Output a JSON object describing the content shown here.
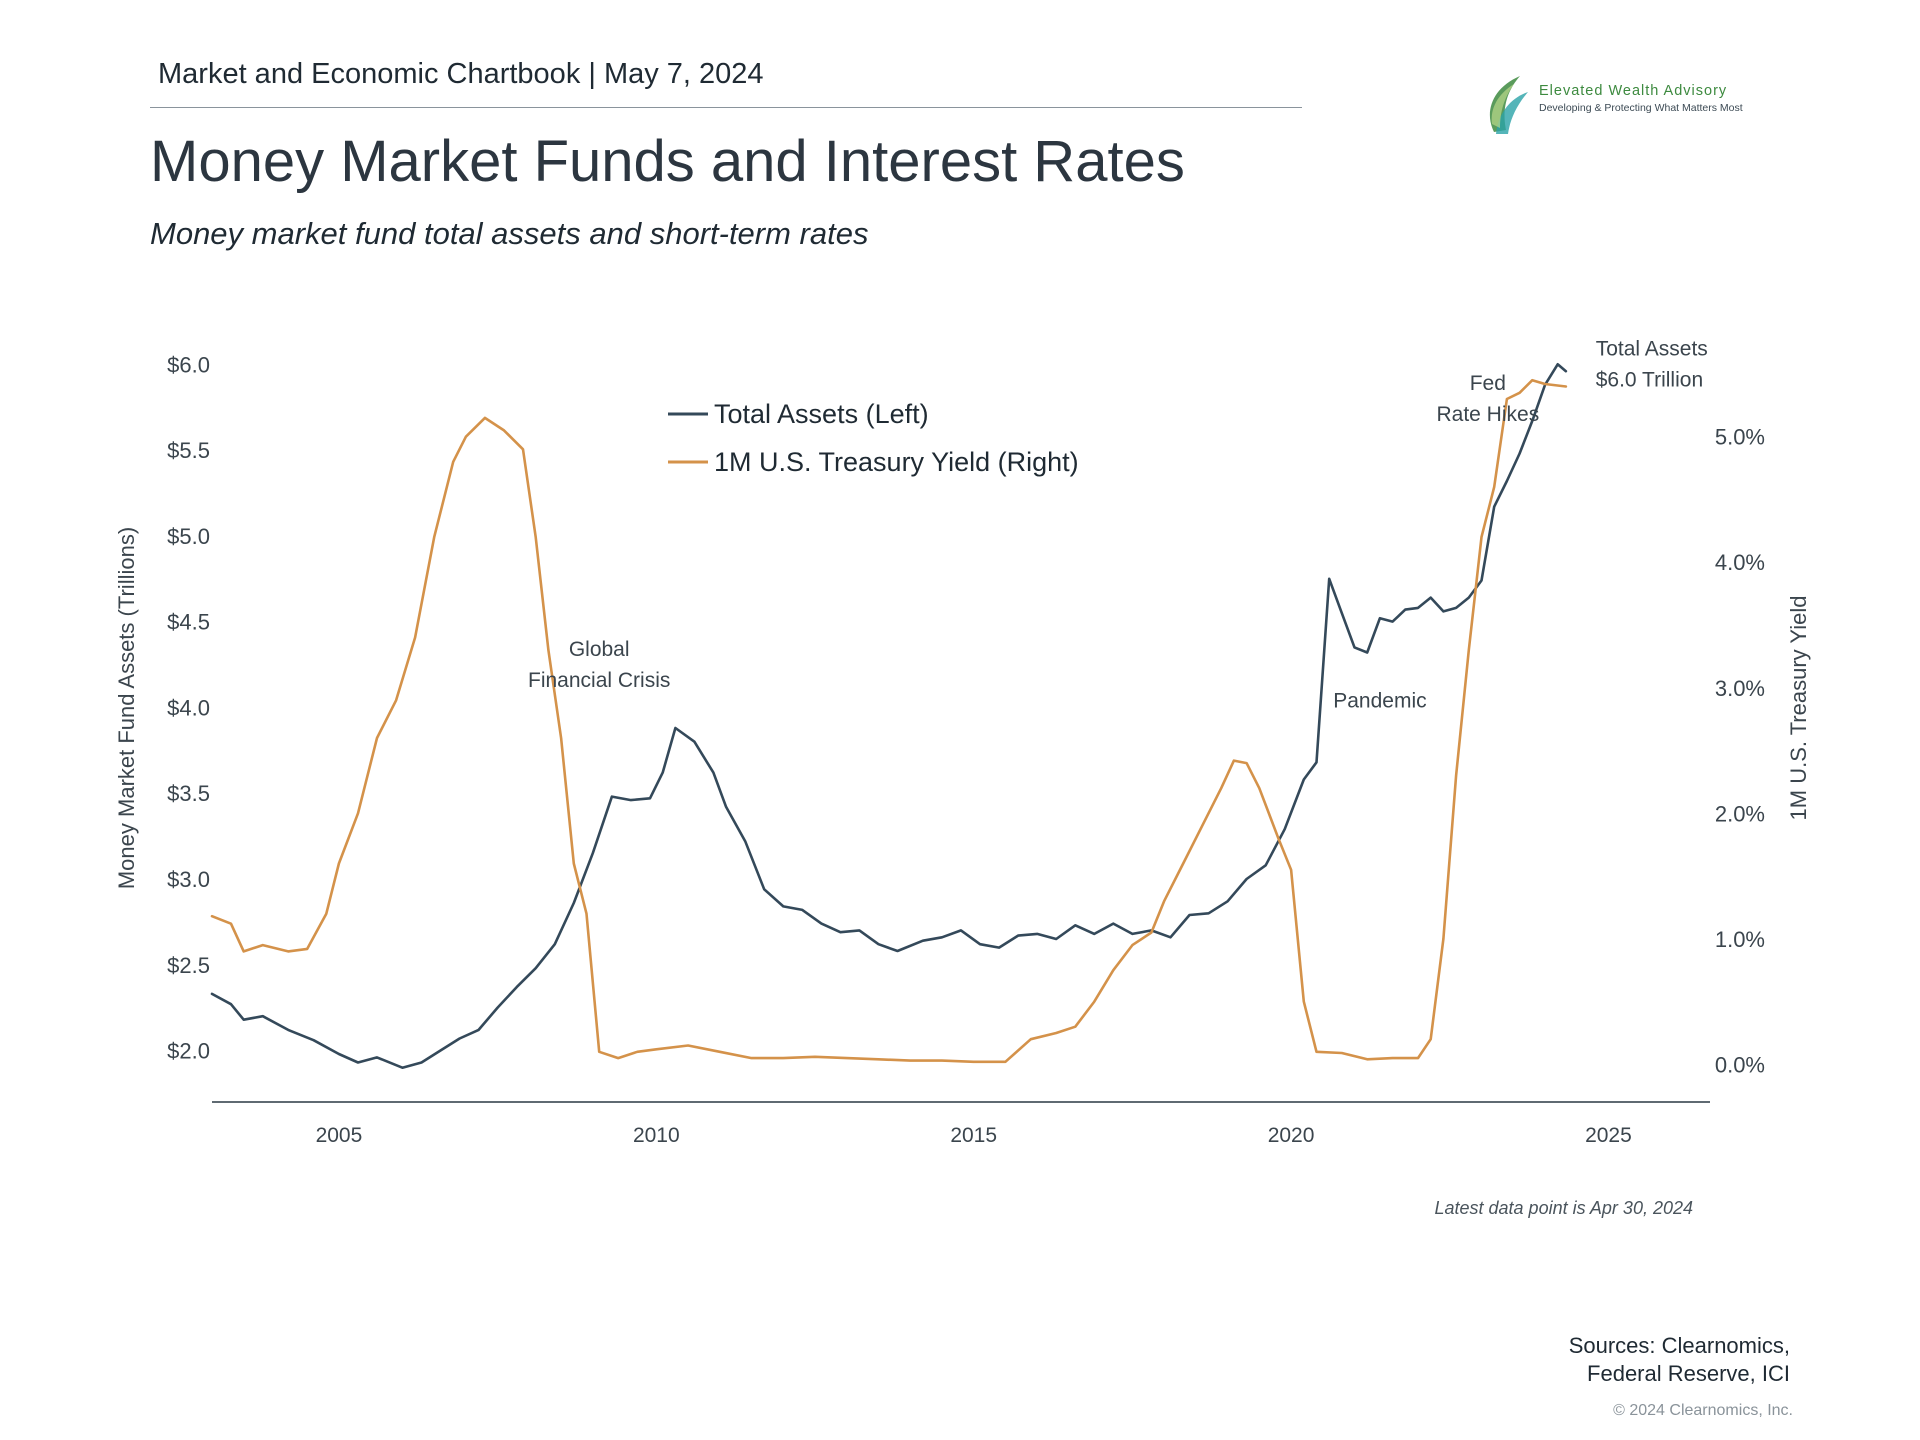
{
  "header": {
    "chartbook": "Market and Economic Chartbook | May 7, 2024"
  },
  "logo": {
    "name": "Elevated Wealth Advisory",
    "tagline": "Developing & Protecting What Matters Most",
    "color_green": "#3d8a3f",
    "color_teal": "#2aa3a8"
  },
  "title": "Money Market Funds and Interest Rates",
  "subtitle": "Money market fund total assets and short-term rates",
  "footnote": "Latest data point is Apr 30, 2024",
  "sources": {
    "line1": "Sources: Clearnomics,",
    "line2": "Federal Reserve, ICI"
  },
  "copyright": "© 2024 Clearnomics, Inc.",
  "chart_data": {
    "type": "line",
    "title": "",
    "ylabel_left": "Money Market Fund Assets (Trillions)",
    "ylabel_right": "1M U.S. Treasury Yield",
    "xlabel": "",
    "x_ticks": [
      "2005",
      "2010",
      "2015",
      "2020",
      "2025"
    ],
    "x_tick_values": [
      2005,
      2010,
      2015,
      2020,
      2025
    ],
    "xlim": [
      2003.0,
      2026.6
    ],
    "y_left_ticks": [
      "$2.0",
      "$2.5",
      "$3.0",
      "$3.5",
      "$4.0",
      "$4.5",
      "$5.0",
      "$5.5",
      "$6.0"
    ],
    "y_left_tick_values": [
      2.0,
      2.5,
      3.0,
      3.5,
      4.0,
      4.5,
      5.0,
      5.5,
      6.0
    ],
    "ylim_left": [
      1.7,
      6.2
    ],
    "y_right_ticks": [
      "0.0%",
      "1.0%",
      "2.0%",
      "3.0%",
      "4.0%",
      "5.0%"
    ],
    "y_right_tick_values": [
      0,
      1,
      2,
      3,
      4,
      5
    ],
    "ylim_right": [
      -0.3,
      5.85
    ],
    "grid": false,
    "legend_position": "top-center",
    "colors": {
      "total_assets": "#34495a",
      "treasury_yield": "#d4924a",
      "axis": "#5f6a72"
    },
    "series": [
      {
        "name": "Total Assets (Left)",
        "axis": "left",
        "points": [
          [
            2003.0,
            2.33
          ],
          [
            2003.3,
            2.27
          ],
          [
            2003.5,
            2.18
          ],
          [
            2003.8,
            2.2
          ],
          [
            2004.2,
            2.12
          ],
          [
            2004.6,
            2.06
          ],
          [
            2005.0,
            1.98
          ],
          [
            2005.3,
            1.93
          ],
          [
            2005.6,
            1.96
          ],
          [
            2006.0,
            1.9
          ],
          [
            2006.3,
            1.93
          ],
          [
            2006.6,
            2.0
          ],
          [
            2006.9,
            2.07
          ],
          [
            2007.2,
            2.12
          ],
          [
            2007.5,
            2.25
          ],
          [
            2007.8,
            2.37
          ],
          [
            2008.1,
            2.48
          ],
          [
            2008.4,
            2.62
          ],
          [
            2008.7,
            2.86
          ],
          [
            2009.0,
            3.15
          ],
          [
            2009.3,
            3.48
          ],
          [
            2009.6,
            3.46
          ],
          [
            2009.9,
            3.47
          ],
          [
            2010.1,
            3.62
          ],
          [
            2010.3,
            3.88
          ],
          [
            2010.6,
            3.8
          ],
          [
            2010.9,
            3.62
          ],
          [
            2011.1,
            3.42
          ],
          [
            2011.4,
            3.22
          ],
          [
            2011.7,
            2.94
          ],
          [
            2012.0,
            2.84
          ],
          [
            2012.3,
            2.82
          ],
          [
            2012.6,
            2.74
          ],
          [
            2012.9,
            2.69
          ],
          [
            2013.2,
            2.7
          ],
          [
            2013.5,
            2.62
          ],
          [
            2013.8,
            2.58
          ],
          [
            2014.2,
            2.64
          ],
          [
            2014.5,
            2.66
          ],
          [
            2014.8,
            2.7
          ],
          [
            2015.1,
            2.62
          ],
          [
            2015.4,
            2.6
          ],
          [
            2015.7,
            2.67
          ],
          [
            2016.0,
            2.68
          ],
          [
            2016.3,
            2.65
          ],
          [
            2016.6,
            2.73
          ],
          [
            2016.9,
            2.68
          ],
          [
            2017.2,
            2.74
          ],
          [
            2017.5,
            2.68
          ],
          [
            2017.8,
            2.7
          ],
          [
            2018.1,
            2.66
          ],
          [
            2018.4,
            2.79
          ],
          [
            2018.7,
            2.8
          ],
          [
            2019.0,
            2.87
          ],
          [
            2019.3,
            3.0
          ],
          [
            2019.6,
            3.08
          ],
          [
            2019.9,
            3.29
          ],
          [
            2020.2,
            3.58
          ],
          [
            2020.4,
            3.68
          ],
          [
            2020.6,
            4.75
          ],
          [
            2020.8,
            4.55
          ],
          [
            2021.0,
            4.35
          ],
          [
            2021.2,
            4.32
          ],
          [
            2021.4,
            4.52
          ],
          [
            2021.6,
            4.5
          ],
          [
            2021.8,
            4.57
          ],
          [
            2022.0,
            4.58
          ],
          [
            2022.2,
            4.64
          ],
          [
            2022.4,
            4.56
          ],
          [
            2022.6,
            4.58
          ],
          [
            2022.8,
            4.64
          ],
          [
            2023.0,
            4.74
          ],
          [
            2023.2,
            5.17
          ],
          [
            2023.4,
            5.32
          ],
          [
            2023.6,
            5.48
          ],
          [
            2023.8,
            5.67
          ],
          [
            2024.0,
            5.88
          ],
          [
            2024.2,
            6.0
          ],
          [
            2024.33,
            5.96
          ]
        ]
      },
      {
        "name": "1M U.S. Treasury Yield (Right)",
        "axis": "right",
        "points": [
          [
            2003.0,
            1.18
          ],
          [
            2003.3,
            1.12
          ],
          [
            2003.5,
            0.9
          ],
          [
            2003.8,
            0.95
          ],
          [
            2004.2,
            0.9
          ],
          [
            2004.5,
            0.92
          ],
          [
            2004.8,
            1.2
          ],
          [
            2005.0,
            1.6
          ],
          [
            2005.3,
            2.0
          ],
          [
            2005.6,
            2.6
          ],
          [
            2005.9,
            2.9
          ],
          [
            2006.2,
            3.4
          ],
          [
            2006.5,
            4.2
          ],
          [
            2006.8,
            4.8
          ],
          [
            2007.0,
            5.0
          ],
          [
            2007.3,
            5.15
          ],
          [
            2007.6,
            5.05
          ],
          [
            2007.9,
            4.9
          ],
          [
            2008.1,
            4.2
          ],
          [
            2008.3,
            3.3
          ],
          [
            2008.5,
            2.6
          ],
          [
            2008.7,
            1.6
          ],
          [
            2008.9,
            1.2
          ],
          [
            2009.1,
            0.1
          ],
          [
            2009.4,
            0.05
          ],
          [
            2009.7,
            0.1
          ],
          [
            2010.0,
            0.12
          ],
          [
            2010.5,
            0.15
          ],
          [
            2011.0,
            0.1
          ],
          [
            2011.5,
            0.05
          ],
          [
            2012.0,
            0.05
          ],
          [
            2012.5,
            0.06
          ],
          [
            2013.0,
            0.05
          ],
          [
            2013.5,
            0.04
          ],
          [
            2014.0,
            0.03
          ],
          [
            2014.5,
            0.03
          ],
          [
            2015.0,
            0.02
          ],
          [
            2015.5,
            0.02
          ],
          [
            2015.9,
            0.2
          ],
          [
            2016.3,
            0.25
          ],
          [
            2016.6,
            0.3
          ],
          [
            2016.9,
            0.5
          ],
          [
            2017.2,
            0.75
          ],
          [
            2017.5,
            0.95
          ],
          [
            2017.8,
            1.05
          ],
          [
            2018.0,
            1.3
          ],
          [
            2018.3,
            1.6
          ],
          [
            2018.6,
            1.9
          ],
          [
            2018.9,
            2.2
          ],
          [
            2019.1,
            2.42
          ],
          [
            2019.3,
            2.4
          ],
          [
            2019.5,
            2.2
          ],
          [
            2019.8,
            1.8
          ],
          [
            2020.0,
            1.55
          ],
          [
            2020.2,
            0.5
          ],
          [
            2020.4,
            0.1
          ],
          [
            2020.8,
            0.09
          ],
          [
            2021.2,
            0.04
          ],
          [
            2021.6,
            0.05
          ],
          [
            2022.0,
            0.05
          ],
          [
            2022.2,
            0.2
          ],
          [
            2022.4,
            1.0
          ],
          [
            2022.6,
            2.3
          ],
          [
            2022.8,
            3.3
          ],
          [
            2023.0,
            4.2
          ],
          [
            2023.2,
            4.6
          ],
          [
            2023.4,
            5.3
          ],
          [
            2023.6,
            5.35
          ],
          [
            2023.8,
            5.45
          ],
          [
            2024.0,
            5.42
          ],
          [
            2024.33,
            5.4
          ]
        ]
      }
    ],
    "annotations": [
      {
        "lines": [
          "Global",
          "Financial Crisis"
        ],
        "x": 2009.1,
        "y": 4.3,
        "axis": "left"
      },
      {
        "lines": [
          "Pandemic"
        ],
        "x": 2021.4,
        "y": 4.0,
        "axis": "left"
      },
      {
        "lines": [
          "Fed",
          "Rate Hikes"
        ],
        "x": 2023.1,
        "y": 5.85,
        "axis": "left"
      },
      {
        "lines": [
          "Total Assets",
          "$6.0 Trillion"
        ],
        "x": 2024.8,
        "y": 6.05,
        "axis": "left"
      }
    ]
  }
}
